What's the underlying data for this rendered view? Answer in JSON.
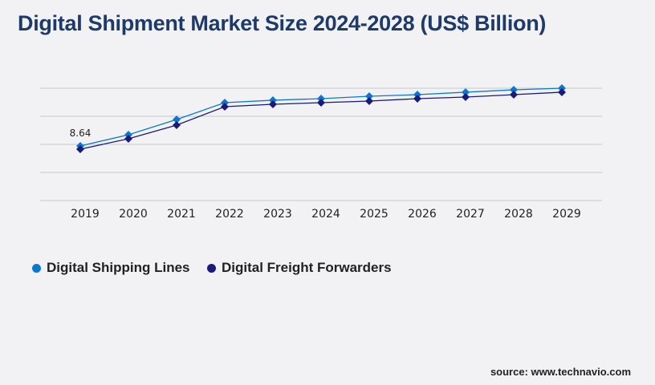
{
  "title": "Digital Shipment Market Size 2024-2028 (US$ Billion)",
  "source": "source: www.technavio.com",
  "chart_data": {
    "type": "line",
    "title": "Digital Shipment Market Size 2024-2028 (US$ Billion)",
    "categories": [
      "2019",
      "2020",
      "2021",
      "2022",
      "2023",
      "2024",
      "2025",
      "2026",
      "2027",
      "2028",
      "2029"
    ],
    "series": [
      {
        "name": "Digital Shipping Lines",
        "color": "#0b78d0",
        "values": [
          8.64,
          10.41,
          12.83,
          15.49,
          15.88,
          16.13,
          16.51,
          16.76,
          17.15,
          17.53,
          17.78
        ]
      },
      {
        "name": "Digital Freight Forwarders",
        "color": "#1a1a7a",
        "values": [
          8.13,
          9.78,
          11.94,
          14.86,
          15.24,
          15.49,
          15.75,
          16.13,
          16.38,
          16.76,
          17.15
        ]
      }
    ],
    "data_labels": [
      {
        "series": 0,
        "index": 0,
        "text": "8.64"
      }
    ],
    "ylim": [
      0,
      17.78
    ],
    "grid": true,
    "legend": "bottom-left",
    "xlabel": "",
    "ylabel": ""
  }
}
